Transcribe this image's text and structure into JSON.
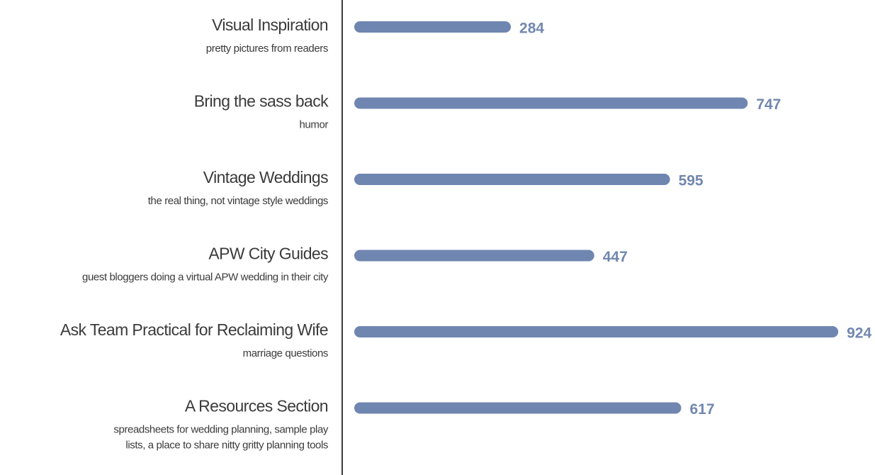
{
  "chart_data": {
    "type": "bar",
    "orientation": "horizontal",
    "categories": [
      "Visual Inspiration",
      "Bring the sass back",
      "Vintage Weddings",
      "APW City Guides",
      "Ask Team Practical for Reclaiming Wife",
      "A Resources Section"
    ],
    "descriptions": [
      [
        "pretty pictures from readers"
      ],
      [
        "humor"
      ],
      [
        "the real thing, not vintage style weddings"
      ],
      [
        "guest bloggers doing a virtual APW wedding in their city"
      ],
      [
        "marriage questions"
      ],
      [
        "spreadsheets for wedding planning, sample play",
        "lists, a place to share nitty gritty planning tools"
      ]
    ],
    "values": [
      284,
      747,
      595,
      447,
      924,
      617
    ],
    "color": "#6f86b0"
  }
}
